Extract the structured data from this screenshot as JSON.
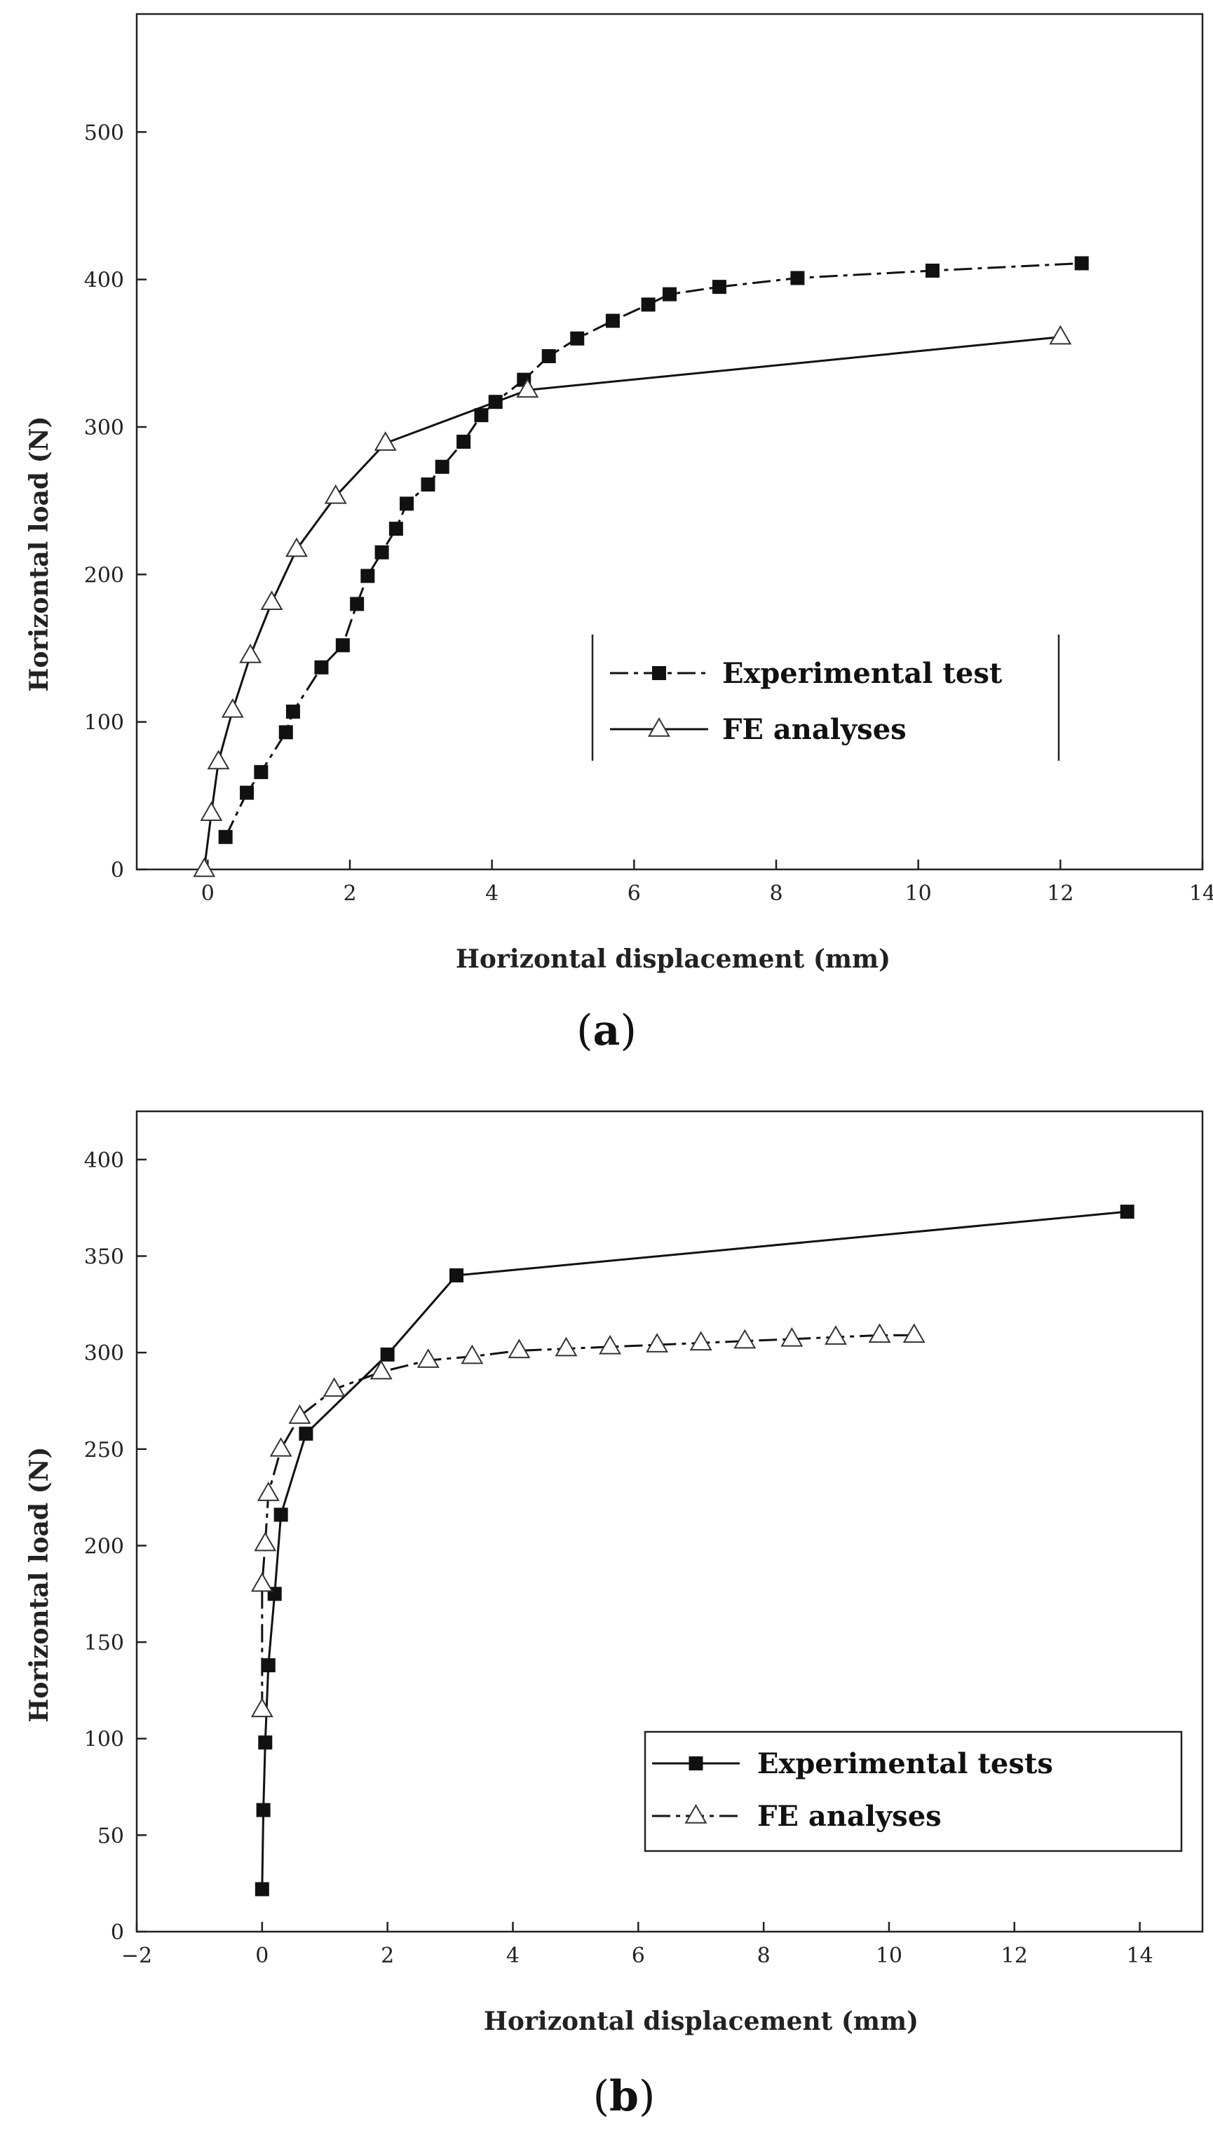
{
  "chart_data": [
    {
      "type": "line",
      "panel_label": "a",
      "xlabel": "Horizontal displacement (mm)",
      "ylabel": "Horizontal  load (N)",
      "xlim": [
        -1,
        14
      ],
      "ylim": [
        0,
        580
      ],
      "xticks": [
        0,
        2,
        4,
        6,
        8,
        10,
        12,
        14
      ],
      "yticks": [
        0,
        100,
        200,
        300,
        400,
        500
      ],
      "grid": false,
      "legend_position": "center-right",
      "series": [
        {
          "name": "Experimental test",
          "marker": "filled-square",
          "line_style": "dash-dot",
          "x": [
            0.25,
            0.55,
            0.75,
            1.1,
            1.2,
            1.6,
            1.9,
            2.1,
            2.25,
            2.45,
            2.65,
            2.8,
            3.1,
            3.3,
            3.6,
            3.85,
            4.05,
            4.45,
            4.8,
            5.2,
            5.7,
            6.2,
            6.5,
            7.2,
            8.3,
            10.2,
            12.3
          ],
          "y": [
            22,
            52,
            66,
            93,
            107,
            137,
            152,
            180,
            199,
            215,
            231,
            248,
            261,
            273,
            290,
            308,
            317,
            332,
            348,
            360,
            372,
            383,
            390,
            395,
            401,
            406,
            411
          ]
        },
        {
          "name": "FE analyses",
          "marker": "open-triangle",
          "line_style": "solid",
          "x": [
            -0.05,
            0.05,
            0.15,
            0.35,
            0.6,
            0.9,
            1.25,
            1.8,
            2.5,
            4.5,
            12.0
          ],
          "y": [
            0,
            38,
            73,
            108,
            145,
            181,
            217,
            253,
            289,
            325,
            361
          ]
        }
      ]
    },
    {
      "type": "line",
      "panel_label": "b",
      "xlabel": "Horizontal displacement (mm)",
      "ylabel": "Horizontal load (N)",
      "xlim": [
        -2,
        15
      ],
      "ylim": [
        0,
        425
      ],
      "xticks": [
        -2,
        0,
        2,
        4,
        6,
        8,
        10,
        12,
        14
      ],
      "yticks": [
        0,
        50,
        100,
        150,
        200,
        250,
        300,
        350,
        400
      ],
      "grid": false,
      "legend_position": "lower-right",
      "series": [
        {
          "name": "Experimental tests",
          "marker": "filled-square",
          "line_style": "solid",
          "x": [
            0.0,
            0.02,
            0.05,
            0.1,
            0.2,
            0.3,
            0.7,
            2.0,
            3.1,
            13.8
          ],
          "y": [
            22,
            63,
            98,
            138,
            175,
            216,
            258,
            299,
            340,
            373
          ]
        },
        {
          "name": "FE analyses",
          "marker": "open-triangle",
          "line_style": "dash-dot",
          "x": [
            0.0,
            0.0,
            0.05,
            0.1,
            0.3,
            0.6,
            1.15,
            1.9,
            2.65,
            3.35,
            4.1,
            4.85,
            5.55,
            6.3,
            7.0,
            7.7,
            8.45,
            9.15,
            9.85,
            10.4
          ],
          "y": [
            115,
            180,
            201,
            227,
            250,
            267,
            281,
            290,
            296,
            298,
            301,
            302,
            303,
            304,
            305,
            306,
            307,
            308,
            309,
            309
          ]
        }
      ]
    }
  ]
}
